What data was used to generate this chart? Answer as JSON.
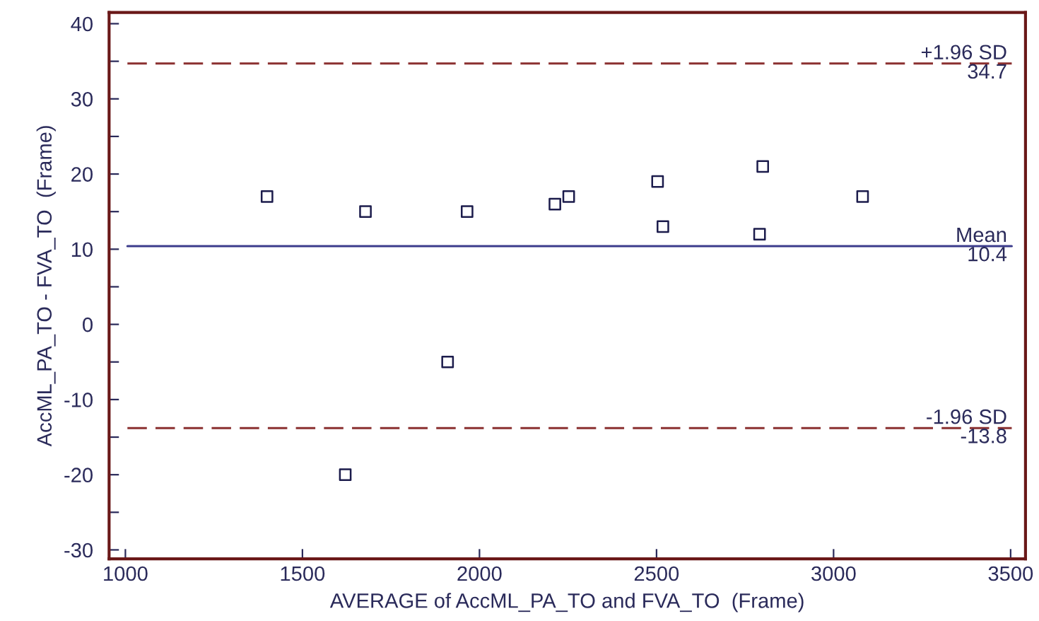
{
  "chart_data": {
    "type": "scatter",
    "xlabel": "AVERAGE of AccML_PA_TO and FVA_TO  (Frame)",
    "ylabel": "AccML_PA_TO - FVA_TO  (Frame)",
    "series": [
      {
        "color": "#1c1c4c",
        "marker": "square",
        "x": [
          1400,
          1678,
          1965,
          2213,
          2252,
          2503,
          2518,
          2800,
          2791,
          3082,
          1910,
          1621
        ],
        "values": [
          17,
          15,
          15,
          16,
          17,
          19,
          13,
          21,
          12,
          17,
          -5,
          -20
        ]
      }
    ],
    "xlim": [
      954,
      3542
    ],
    "ylim": [
      -31.2,
      41.5
    ],
    "xticks": [
      1000,
      1500,
      2000,
      2500,
      3000,
      3500
    ],
    "yticks": [
      -30,
      {
        "value": -25,
        "label": null
      },
      -20,
      {
        "value": -15,
        "label": null
      },
      -10,
      {
        "value": -5,
        "label": null
      },
      0,
      {
        "value": 5,
        "label": null
      },
      10,
      {
        "value": 15,
        "label": null
      },
      20,
      {
        "value": 25,
        "label": null
      },
      30,
      {
        "value": 35,
        "label": null
      },
      40
    ],
    "ref_lines": [
      {
        "axis": "y",
        "value": 34.7,
        "label": "+1.96 SD",
        "color": "#8b3030",
        "line_style": "dashed"
      },
      {
        "axis": "y",
        "value": 10.4,
        "label": "Mean",
        "color": "#3c3c8c",
        "line_style": "solid"
      },
      {
        "axis": "y",
        "value": -13.8,
        "label": "-1.96 SD",
        "color": "#8b3030",
        "line_style": "dashed"
      }
    ],
    "annotations": [
      {
        "text": "34.7",
        "y": 34.7
      },
      {
        "text": "10.4",
        "y": 10.4
      },
      {
        "text": "-13.8",
        "y": -13.8
      }
    ],
    "grid": false
  }
}
